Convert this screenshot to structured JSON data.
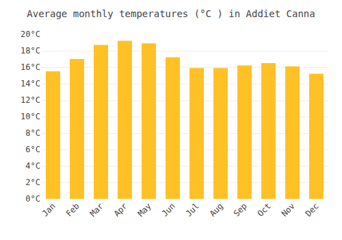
{
  "chart_data": {
    "type": "bar",
    "title": "Average monthly temperatures (°C ) in Addiet Canna",
    "categories": [
      "Jan",
      "Feb",
      "Mar",
      "Apr",
      "May",
      "Jun",
      "Jul",
      "Aug",
      "Sep",
      "Oct",
      "Nov",
      "Dec"
    ],
    "values": [
      15.5,
      17.0,
      18.7,
      19.2,
      18.9,
      17.2,
      15.9,
      15.9,
      16.2,
      16.5,
      16.1,
      15.2
    ],
    "color": "#FFC125",
    "ylim": [
      0,
      20
    ],
    "yticks": [
      {
        "value": 0,
        "label": "0°C"
      },
      {
        "value": 2,
        "label": "2°C"
      },
      {
        "value": 4,
        "label": "4°C"
      },
      {
        "value": 6,
        "label": "6°C"
      },
      {
        "value": 8,
        "label": "8°C"
      },
      {
        "value": 10,
        "label": "10°C"
      },
      {
        "value": 12,
        "label": "12°C"
      },
      {
        "value": 14,
        "label": "14°C"
      },
      {
        "value": 16,
        "label": "16°C"
      },
      {
        "value": 18,
        "label": "18°C"
      },
      {
        "value": 20,
        "label": "20°C"
      }
    ],
    "grid": true
  }
}
